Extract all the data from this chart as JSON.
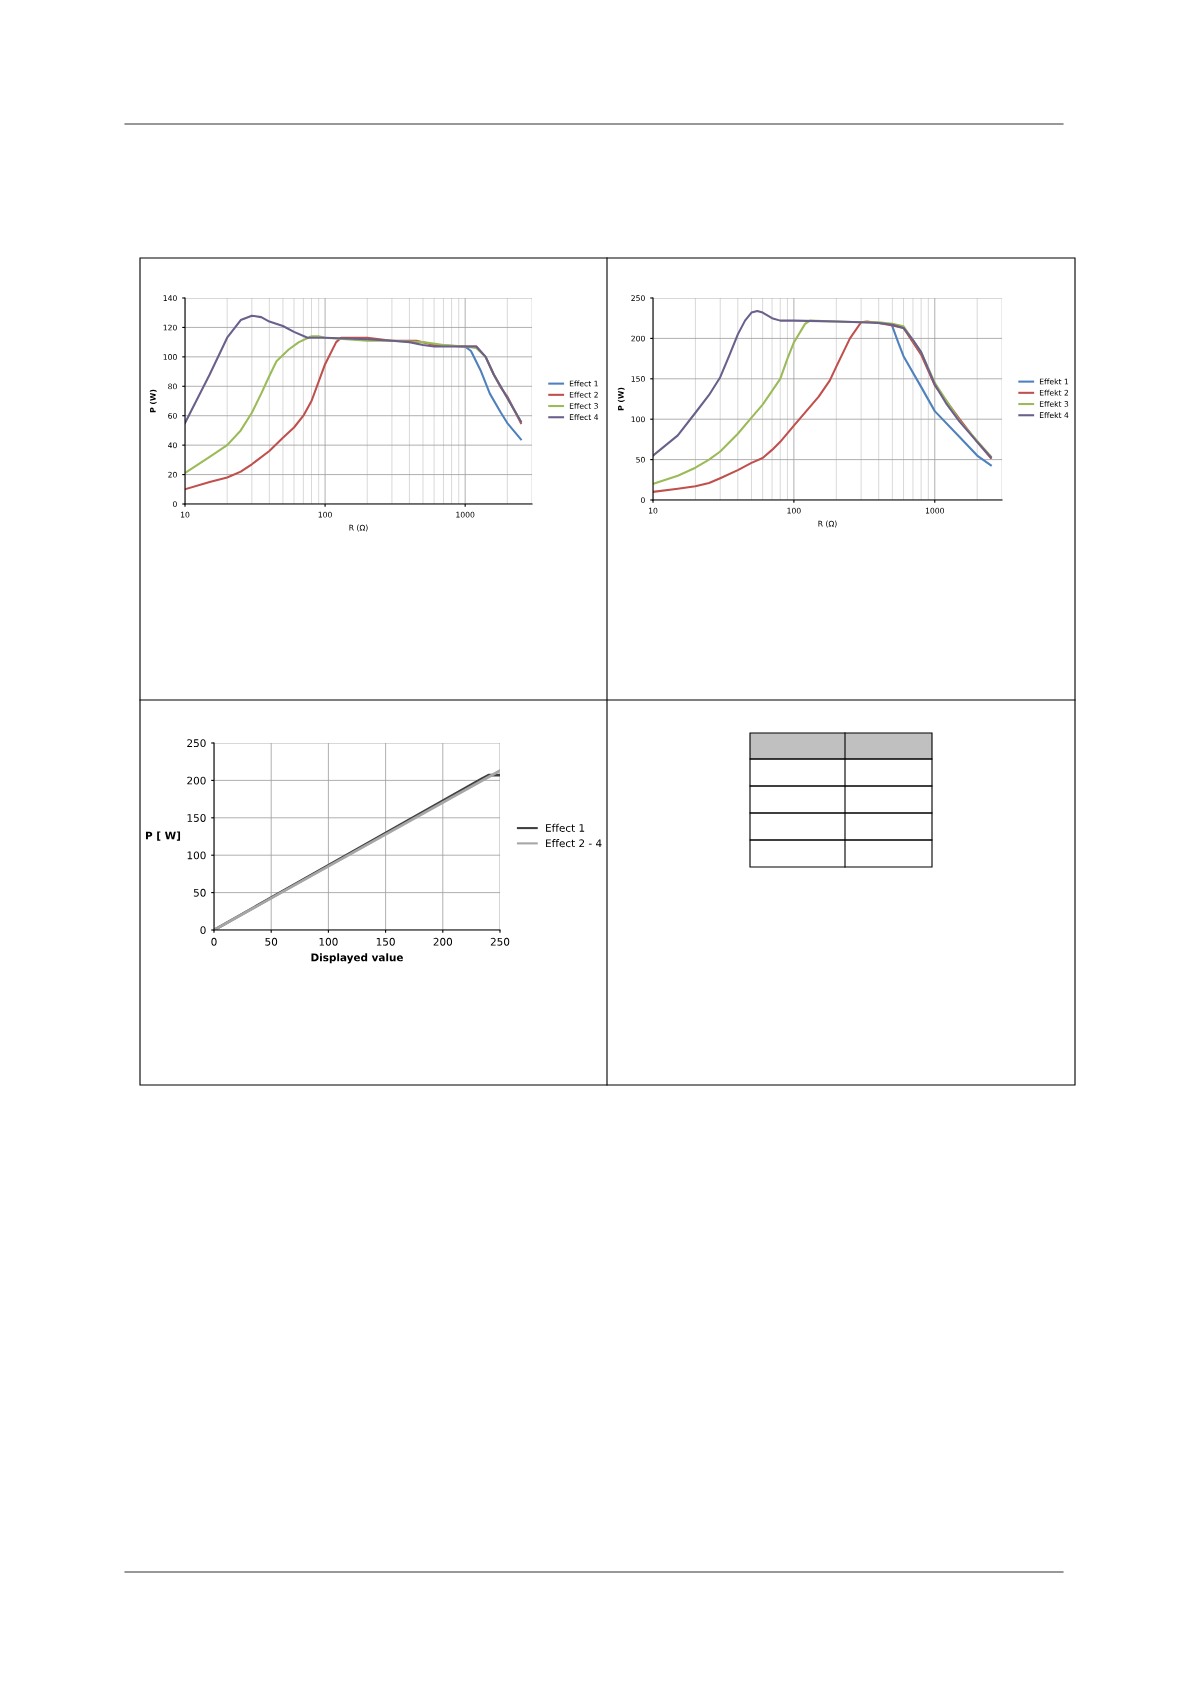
{
  "chart_data": [
    {
      "type": "line",
      "xlabel": "R (Ω)",
      "ylabel": "P (W)",
      "log": "x",
      "grid": true,
      "legend": "right",
      "xlim": [
        10,
        3000
      ],
      "ylim": [
        0,
        140
      ],
      "xticks": [
        10,
        100,
        1000
      ],
      "yticks": [
        0,
        20,
        40,
        60,
        80,
        100,
        120,
        140
      ],
      "series": [
        {
          "name": "Effect 1",
          "color": "#4f81bd",
          "x": [
            1000,
            1100,
            1300,
            1500,
            1800,
            2000,
            2500
          ],
          "values": [
            107,
            104,
            90,
            75,
            62,
            55,
            44
          ]
        },
        {
          "name": "Effect 2",
          "color": "#c0504d",
          "x": [
            10,
            15,
            20,
            25,
            30,
            40,
            50,
            60,
            70,
            80,
            100,
            120,
            130,
            200,
            300,
            450,
            600,
            1000,
            1200,
            1400,
            1600,
            1800,
            2000,
            2500
          ],
          "values": [
            10,
            15,
            18,
            22,
            27,
            36,
            45,
            52,
            60,
            70,
            95,
            110,
            113,
            113,
            111,
            111,
            108,
            107,
            107,
            100,
            88,
            79,
            73,
            55
          ]
        },
        {
          "name": "Effect 3",
          "color": "#9bbb59",
          "x": [
            10,
            15,
            20,
            25,
            30,
            35,
            40,
            45,
            55,
            65,
            80,
            90,
            100,
            200,
            300,
            500,
            700,
            1000,
            1200,
            1400,
            1600,
            2000,
            2500
          ],
          "values": [
            21,
            32,
            40,
            50,
            62,
            75,
            87,
            97,
            105,
            110,
            114,
            114,
            113,
            111,
            111,
            110,
            108,
            107,
            106,
            100,
            88,
            72,
            56
          ]
        },
        {
          "name": "Effect 4",
          "color": "#6b5f8c",
          "x": [
            10,
            15,
            20,
            25,
            30,
            35,
            40,
            50,
            60,
            75,
            100,
            200,
            300,
            400,
            500,
            600,
            800,
            1000,
            1200,
            1400,
            1600,
            2000,
            2500
          ],
          "values": [
            55,
            88,
            113,
            125,
            128,
            127,
            124,
            121,
            117,
            113,
            113,
            112,
            111,
            110,
            108,
            107,
            107,
            107,
            107,
            100,
            88,
            72,
            56
          ]
        }
      ]
    },
    {
      "type": "line",
      "xlabel": "R (Ω)",
      "ylabel": "P (W)",
      "log": "x",
      "grid": true,
      "legend": "right",
      "xlim": [
        10,
        3000
      ],
      "ylim": [
        0,
        250
      ],
      "xticks": [
        10,
        100,
        1000
      ],
      "yticks": [
        0,
        50,
        100,
        150,
        200,
        250
      ],
      "series": [
        {
          "name": "Effekt 1",
          "color": "#4f81bd",
          "x": [
            500,
            550,
            600,
            800,
            1000,
            1500,
            2000,
            2500
          ],
          "values": [
            215,
            195,
            178,
            140,
            110,
            78,
            55,
            43
          ]
        },
        {
          "name": "Effekt 2",
          "color": "#c0504d",
          "x": [
            10,
            15,
            20,
            25,
            30,
            40,
            50,
            60,
            70,
            80,
            100,
            150,
            180,
            200,
            250,
            300,
            330,
            400,
            500,
            600,
            800,
            1000,
            1500,
            2000,
            2500
          ],
          "values": [
            10,
            14,
            17,
            21,
            27,
            37,
            46,
            52,
            62,
            72,
            92,
            128,
            148,
            165,
            200,
            220,
            221,
            219,
            216,
            213,
            180,
            142,
            100,
            72,
            52
          ]
        },
        {
          "name": "Effekt 3",
          "color": "#9bbb59",
          "x": [
            10,
            15,
            20,
            25,
            30,
            40,
            50,
            60,
            70,
            80,
            90,
            100,
            120,
            130,
            200,
            300,
            400,
            500,
            600,
            800,
            1000,
            1500,
            2000,
            2500
          ],
          "values": [
            20,
            30,
            40,
            50,
            60,
            82,
            102,
            118,
            135,
            150,
            175,
            195,
            218,
            222,
            221,
            220,
            220,
            218,
            215,
            183,
            145,
            98,
            73,
            54
          ]
        },
        {
          "name": "Effekt 4",
          "color": "#6b5f8c",
          "x": [
            10,
            15,
            20,
            25,
            30,
            35,
            40,
            45,
            50,
            55,
            60,
            70,
            80,
            100,
            200,
            300,
            400,
            500,
            600,
            700,
            800,
            1000,
            1200,
            1500,
            2000,
            2500
          ],
          "values": [
            55,
            80,
            108,
            130,
            152,
            180,
            205,
            222,
            232,
            234,
            232,
            225,
            222,
            222,
            221,
            220,
            219,
            217,
            213,
            198,
            183,
            143,
            120,
            97,
            72,
            53
          ]
        }
      ]
    },
    {
      "type": "line",
      "xlabel": "Displayed value",
      "ylabel": "P [ W]",
      "grid": true,
      "legend": "right",
      "xlim": [
        0,
        250
      ],
      "ylim": [
        0,
        250
      ],
      "xticks": [
        0,
        50,
        100,
        150,
        200,
        250
      ],
      "yticks": [
        0,
        50,
        100,
        150,
        200,
        250
      ],
      "series": [
        {
          "name": "Effect 1",
          "color": "#404040",
          "x": [
            0,
            235,
            240,
            250
          ],
          "values": [
            0,
            203,
            207,
            207
          ]
        },
        {
          "name": "Effect 2 - 4",
          "color": "#a6a6a6",
          "x": [
            0,
            250
          ],
          "values": [
            0,
            213
          ]
        }
      ]
    }
  ]
}
